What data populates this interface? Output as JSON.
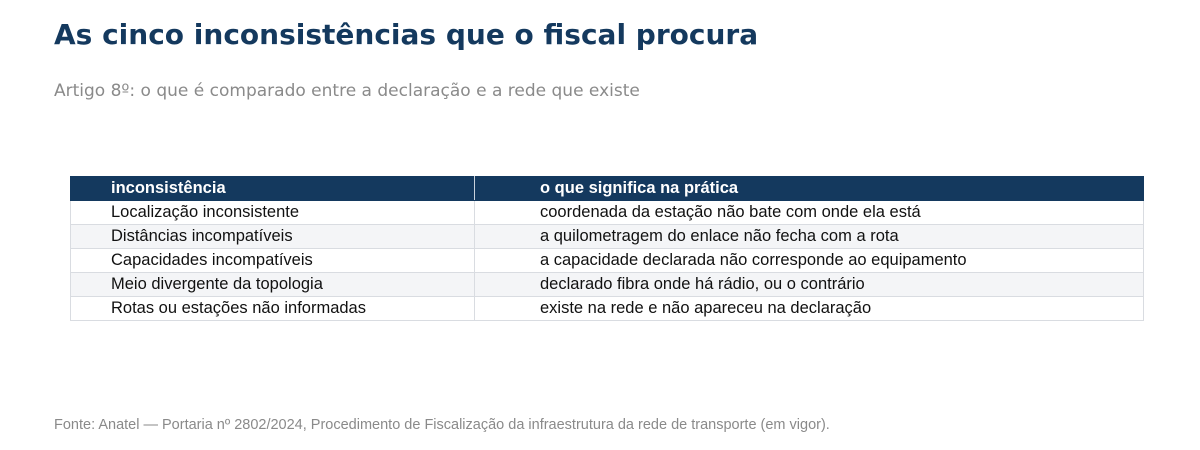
{
  "title": "As cinco inconsistências que o fiscal procura",
  "subtitle": "Artigo 8º: o que é comparado entre a declaração e a rede que existe",
  "table": {
    "headers": [
      "inconsistência",
      "o que significa na prática"
    ],
    "rows": [
      [
        "Localização inconsistente",
        "coordenada da estação não bate com onde ela está"
      ],
      [
        "Distâncias incompatíveis",
        "a quilometragem do enlace não fecha com a rota"
      ],
      [
        "Capacidades incompatíveis",
        "a capacidade declarada não corresponde ao equipamento"
      ],
      [
        "Meio divergente da topologia",
        "declarado fibra onde há rádio, ou o contrário"
      ],
      [
        "Rotas ou estações não informadas",
        "existe na rede e não apareceu na declaração"
      ]
    ]
  },
  "source": "Fonte: Anatel — Portaria nº 2802/2024, Procedimento de Fiscalização da infraestrutura da rede de transporte (em vigor).",
  "colors": {
    "title": "#14395e",
    "header_bg": "#14395e",
    "header_text": "#ffffff",
    "row_alt_bg": "#f4f5f7",
    "muted_text": "#8a8a8a",
    "border": "#d9dce1"
  }
}
